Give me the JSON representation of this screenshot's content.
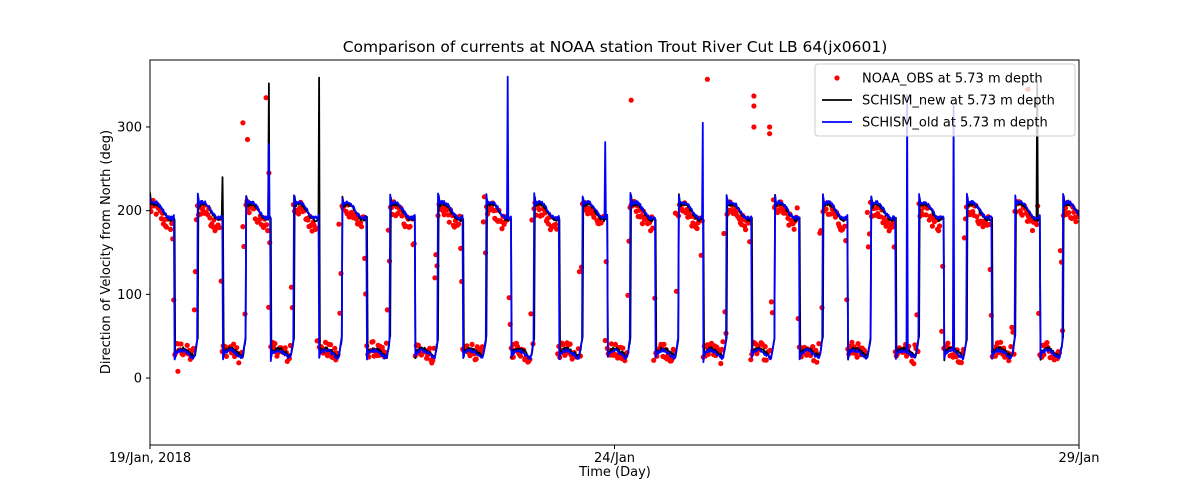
{
  "chart_data": {
    "type": "line",
    "title": "Comparison of currents at NOAA station Trout River Cut LB 64(jx0601)",
    "xlabel": "Time (Day)",
    "ylabel": "Direction of Velocity from North (deg)",
    "xlim": [
      0,
      10
    ],
    "ylim": [
      -80,
      380
    ],
    "x_ticks": [
      {
        "value": 0,
        "label": "19/Jan, 2018"
      },
      {
        "value": 5,
        "label": "24/Jan"
      },
      {
        "value": 10,
        "label": "29/Jan"
      }
    ],
    "y_ticks": [
      0,
      100,
      200,
      300
    ],
    "grid": false,
    "legend": "top-right",
    "semi_diurnal_period_days": 0.5175,
    "series": [
      {
        "name": "NOAA_OBS at 5.73 m depth",
        "style": "points",
        "color": "#ff0000",
        "flood_direction_deg": 200,
        "ebb_direction_deg": 30,
        "spikes": [
          {
            "x": 1.25,
            "y": 335
          },
          {
            "x": 1.05,
            "y": 285
          },
          {
            "x": 1.0,
            "y": 305
          },
          {
            "x": 5.18,
            "y": 332
          },
          {
            "x": 6.0,
            "y": 357
          },
          {
            "x": 6.5,
            "y": 337
          },
          {
            "x": 6.5,
            "y": 325
          },
          {
            "x": 6.5,
            "y": 300
          },
          {
            "x": 6.67,
            "y": 300
          },
          {
            "x": 6.67,
            "y": 292
          },
          {
            "x": 9.45,
            "y": 345
          },
          {
            "x": 0.3,
            "y": 8
          },
          {
            "x": 1.28,
            "y": 245
          }
        ]
      },
      {
        "name": "SCHISM_new at 5.73 m depth",
        "style": "line",
        "color": "#000000",
        "flood_direction_deg": 205,
        "ebb_direction_deg": 30,
        "spikes": [
          {
            "x": 1.28,
            "y": 352
          },
          {
            "x": 1.82,
            "y": 359
          },
          {
            "x": 9.55,
            "y": 355
          },
          {
            "x": 0.78,
            "y": 240
          }
        ]
      },
      {
        "name": "SCHISM_old at 5.73 m depth",
        "style": "line",
        "color": "#0000ff",
        "flood_direction_deg": 207,
        "ebb_direction_deg": 28,
        "spikes": [
          {
            "x": 3.85,
            "y": 360
          },
          {
            "x": 4.9,
            "y": 282
          },
          {
            "x": 5.95,
            "y": 305
          },
          {
            "x": 8.15,
            "y": 338
          },
          {
            "x": 8.65,
            "y": 325
          },
          {
            "x": 1.28,
            "y": 280
          }
        ]
      }
    ]
  }
}
